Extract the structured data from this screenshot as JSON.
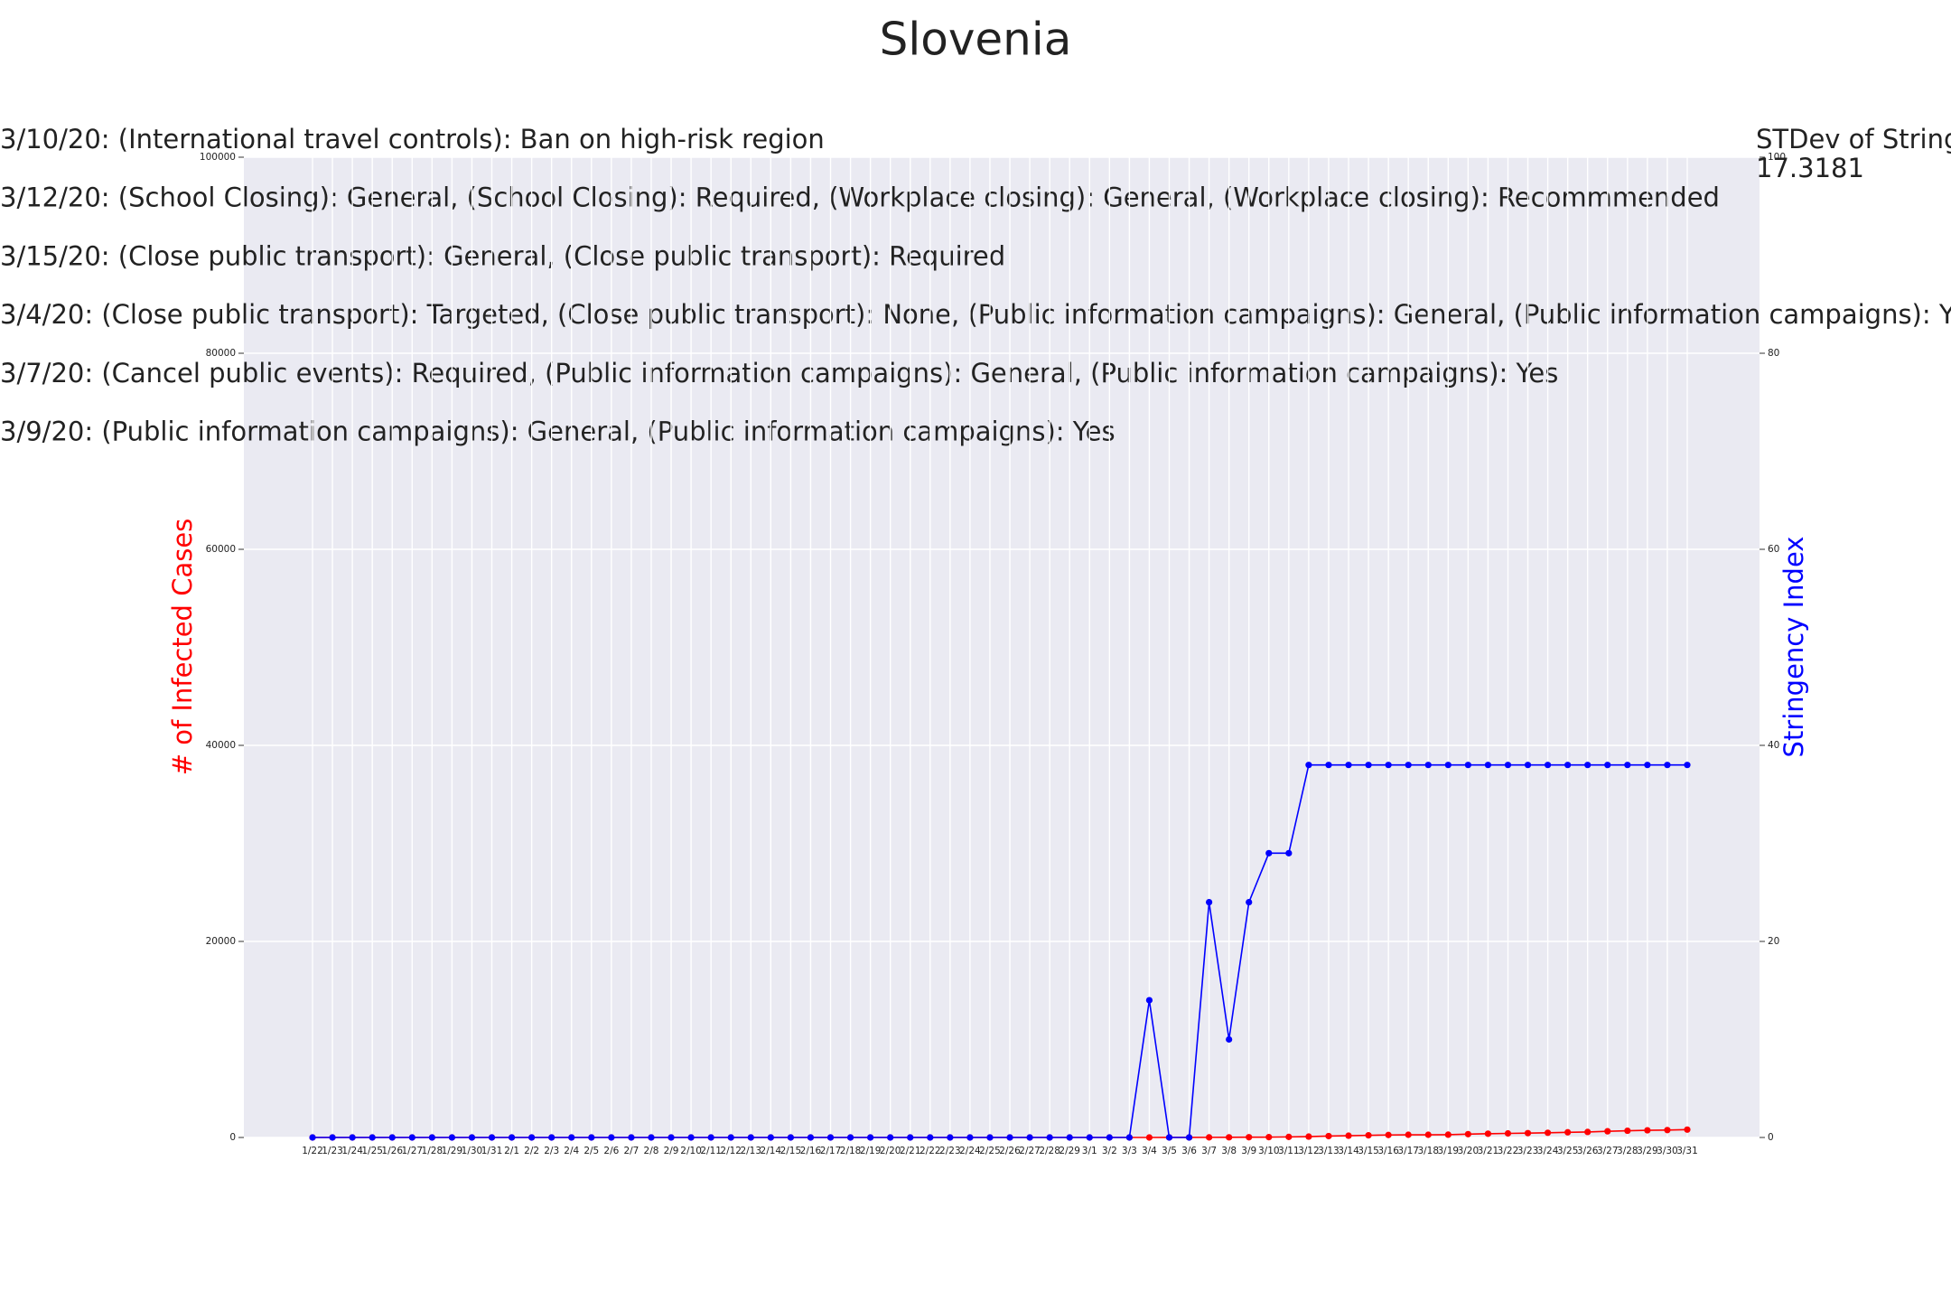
{
  "chart_data": {
    "type": "line",
    "title": "Slovenia",
    "annotations": [
      "3/10/20: (International travel controls): Ban on high-risk region",
      "3/12/20: (School Closing): General, (School Closing): Required, (Workplace closing): General, (Workplace closing): Recommmended",
      "3/15/20: (Close public transport): General, (Close public transport): Required",
      "3/4/20: (Close public transport): Targeted, (Close public transport): None, (Public information campaigns): General, (Public information campaigns): Yes",
      "3/7/20: (Cancel public events): Required, (Public information campaigns): General, (Public information campaigns): Yes",
      "3/9/20: (Public information campaigns): General, (Public information campaigns): Yes"
    ],
    "stdev_label": "STDev of Stringency",
    "stdev_value": "17.3181",
    "ylabel": "# of Infected Cases",
    "y2label": "Stringency Index",
    "categories": [
      "1/22",
      "1/23",
      "1/24",
      "1/25",
      "1/26",
      "1/27",
      "1/28",
      "1/29",
      "1/30",
      "1/31",
      "2/1",
      "2/2",
      "2/3",
      "2/4",
      "2/5",
      "2/6",
      "2/7",
      "2/8",
      "2/9",
      "2/10",
      "2/11",
      "2/12",
      "2/13",
      "2/14",
      "2/15",
      "2/16",
      "2/17",
      "2/18",
      "2/19",
      "2/20",
      "2/21",
      "2/22",
      "2/23",
      "2/24",
      "2/25",
      "2/26",
      "2/27",
      "2/28",
      "2/29",
      "3/1",
      "3/2",
      "3/3",
      "3/4",
      "3/5",
      "3/6",
      "3/7",
      "3/8",
      "3/9",
      "3/10",
      "3/11",
      "3/12",
      "3/13",
      "3/14",
      "3/15",
      "3/16",
      "3/17",
      "3/18",
      "3/19",
      "3/20",
      "3/21",
      "3/22",
      "3/23",
      "3/24",
      "3/25",
      "3/26",
      "3/27",
      "3/28",
      "3/29",
      "3/30",
      "3/31"
    ],
    "series": [
      {
        "name": "# of Infected Cases",
        "color": "#ff0000",
        "axis": "y",
        "values": [
          0,
          0,
          0,
          0,
          0,
          0,
          0,
          0,
          0,
          0,
          0,
          0,
          0,
          0,
          0,
          0,
          0,
          0,
          0,
          0,
          0,
          0,
          0,
          0,
          0,
          0,
          0,
          0,
          0,
          0,
          0,
          0,
          0,
          0,
          0,
          0,
          0,
          0,
          0,
          0,
          0,
          0,
          1,
          6,
          8,
          12,
          16,
          25,
          34,
          57,
          89,
          141,
          181,
          219,
          253,
          275,
          275,
          286,
          341,
          383,
          414,
          442,
          480,
          528,
          562,
          632,
          684,
          730,
          756,
          802
        ]
      },
      {
        "name": "Stringency Index",
        "color": "#0000ff",
        "axis": "y2",
        "values": [
          0,
          0,
          0,
          0,
          0,
          0,
          0,
          0,
          0,
          0,
          0,
          0,
          0,
          0,
          0,
          0,
          0,
          0,
          0,
          0,
          0,
          0,
          0,
          0,
          0,
          0,
          0,
          0,
          0,
          0,
          0,
          0,
          0,
          0,
          0,
          0,
          0,
          0,
          0,
          0,
          0,
          0,
          14,
          0,
          0,
          24,
          10,
          24,
          29,
          29,
          38,
          38,
          38,
          38,
          38,
          38,
          38,
          38,
          38,
          38,
          38,
          38,
          38,
          38,
          38,
          38,
          38,
          38,
          38,
          38
        ]
      }
    ],
    "ylim": [
      0,
      100000
    ],
    "yticks": [
      0,
      20000,
      40000,
      60000,
      80000,
      100000
    ],
    "y2lim": [
      0,
      100
    ],
    "y2ticks": [
      0,
      20,
      40,
      60,
      80,
      100
    ],
    "grid": true
  }
}
